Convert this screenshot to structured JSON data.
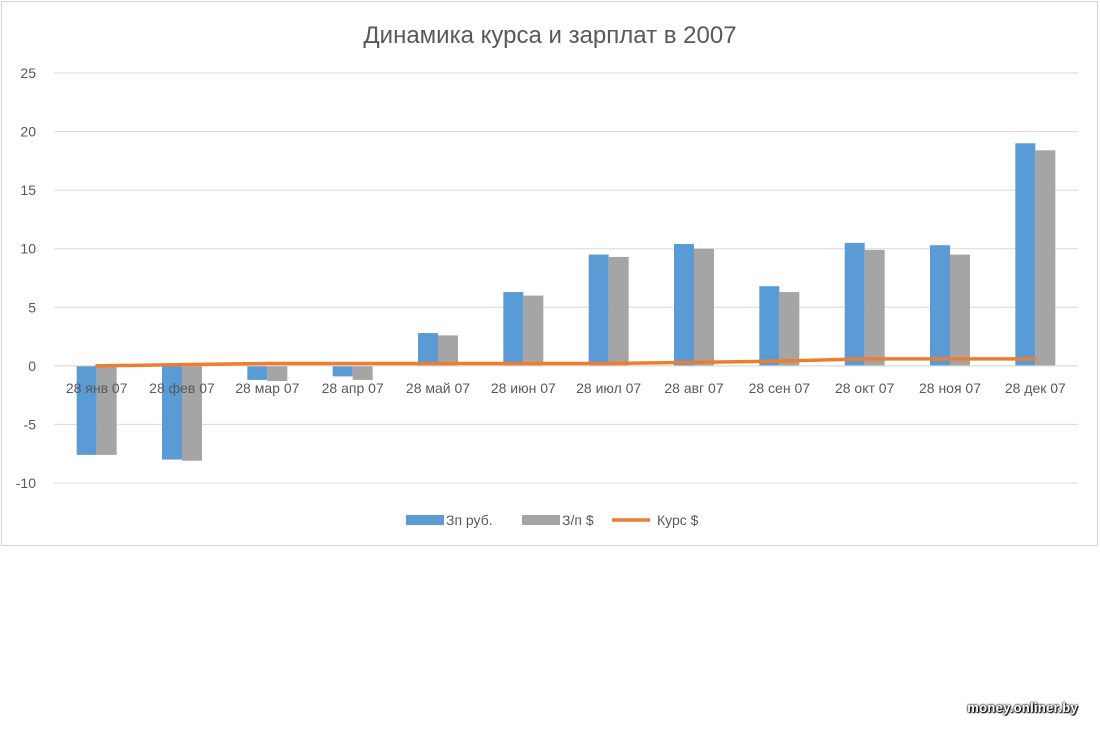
{
  "chart_data": {
    "type": "bar",
    "title": "Динамика курса и зарплат в 2007",
    "categories": [
      "28 янв 07",
      "28 фев 07",
      "28 мар 07",
      "28 апр 07",
      "28 май 07",
      "28 июн 07",
      "28 июл 07",
      "28 авг 07",
      "28 сен 07",
      "28 окт 07",
      "28 ноя 07",
      "28 дек 07"
    ],
    "series": [
      {
        "name": "Зп руб.",
        "type": "bar",
        "color": "#5b9bd5",
        "values": [
          -7.6,
          -8.0,
          -1.2,
          -0.9,
          2.8,
          6.3,
          9.5,
          10.4,
          6.8,
          10.5,
          10.3,
          19.0
        ]
      },
      {
        "name": "З/п $",
        "type": "bar",
        "color": "#a5a5a5",
        "values": [
          -7.6,
          -8.1,
          -1.3,
          -1.2,
          2.6,
          6.0,
          9.3,
          10.0,
          6.3,
          9.9,
          9.5,
          18.4
        ]
      },
      {
        "name": "Курс $",
        "type": "line",
        "color": "#ed7d31",
        "values": [
          0.0,
          0.1,
          0.2,
          0.2,
          0.2,
          0.2,
          0.2,
          0.3,
          0.4,
          0.6,
          0.6,
          0.6
        ]
      }
    ],
    "ylim": [
      -10,
      25
    ],
    "yticks": [
      "-10",
      "-5",
      "0",
      "5",
      "10",
      "15",
      "20",
      "25"
    ],
    "grid": true,
    "legend_position": "bottom"
  },
  "watermark": "money.onliner.by"
}
